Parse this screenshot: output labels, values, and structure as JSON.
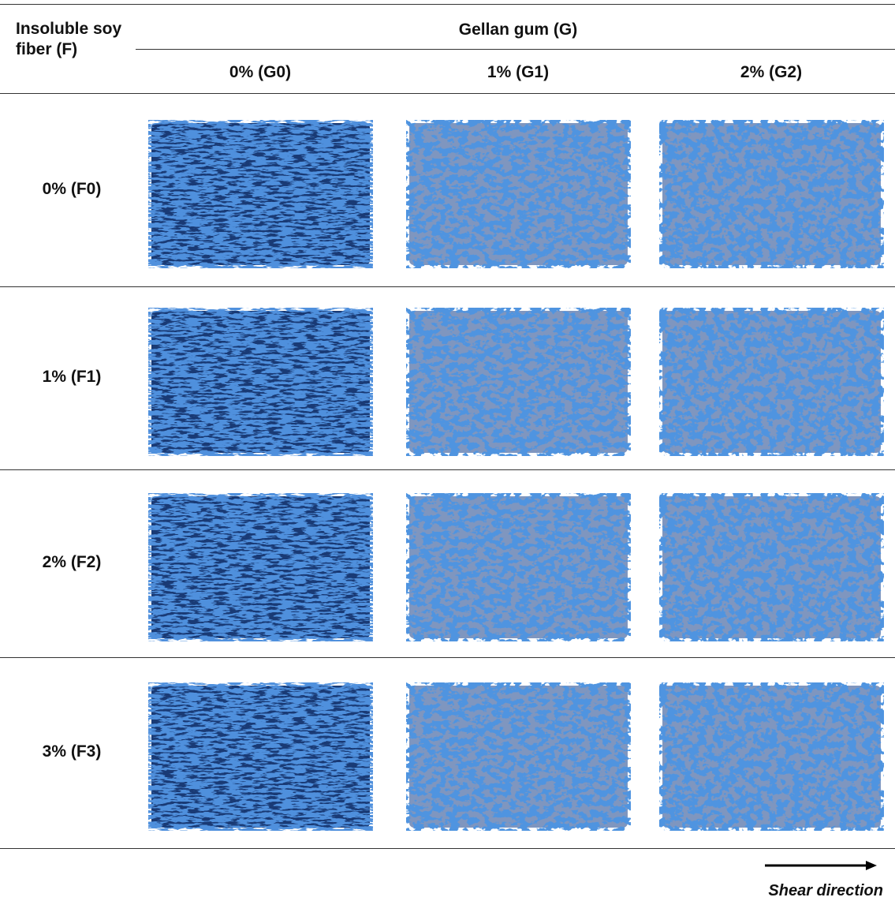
{
  "table": {
    "row_header": "Insoluble soy fiber (F)",
    "column_group": "Gellan gum (G)",
    "columns": [
      "0% (G0)",
      "1% (G1)",
      "2% (G2)"
    ],
    "rows": [
      "0% (F0)",
      "1% (F1)",
      "2% (F2)",
      "3% (F3)"
    ]
  },
  "caption": {
    "arrow_label": "Shear direction"
  }
}
